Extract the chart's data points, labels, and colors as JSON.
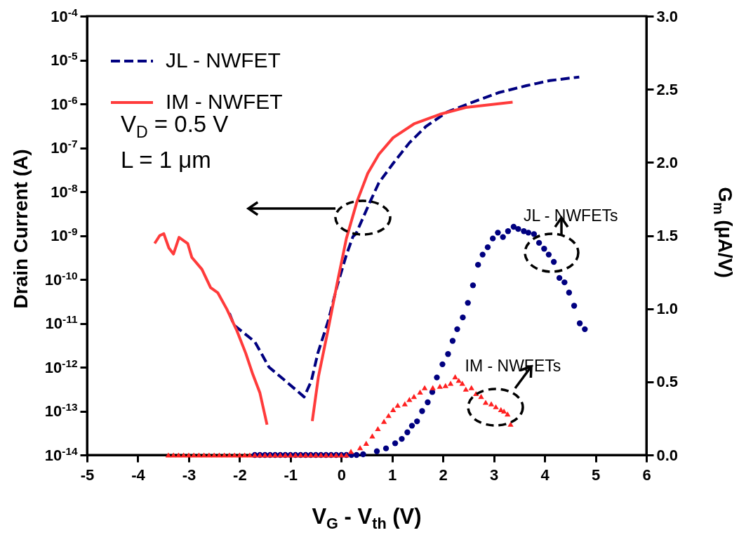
{
  "chart_data": {
    "type": "line",
    "xlabel": "V$_{G}$ - V$_{th}$ (V)",
    "ylabel": "Drain Current (A)",
    "y2label": "G$_{m}$ (μA/V)",
    "xlim": [
      -5,
      6
    ],
    "xticks": [
      -5,
      -4,
      -3,
      -2,
      -1,
      0,
      1,
      2,
      3,
      4,
      5,
      6
    ],
    "ylim": [
      1e-14,
      0.0001
    ],
    "log": "y",
    "yticks": [
      {
        "value": 1e-14,
        "label": "10$^{-14}$"
      },
      {
        "value": 1e-13,
        "label": "10$^{-13}$"
      },
      {
        "value": 1e-12,
        "label": "10$^{-12}$"
      },
      {
        "value": 1e-11,
        "label": "10$^{-11}$"
      },
      {
        "value": 1e-10,
        "label": "10$^{-10}$"
      },
      {
        "value": 1e-09,
        "label": "10$^{-9}$"
      },
      {
        "value": 1e-08,
        "label": "10$^{-8}$"
      },
      {
        "value": 1e-07,
        "label": "10$^{-7}$"
      },
      {
        "value": 1e-06,
        "label": "10$^{-6}$"
      },
      {
        "value": 1e-05,
        "label": "10$^{-5}$"
      },
      {
        "value": 0.0001,
        "label": "10$^{-4}$"
      }
    ],
    "y2lim": [
      0,
      3
    ],
    "y2ticks": [
      {
        "value": 0,
        "label": "0.0"
      },
      {
        "value": 0.5,
        "label": "0.5"
      },
      {
        "value": 1,
        "label": "1.0"
      },
      {
        "value": 1.5,
        "label": "1.5"
      },
      {
        "value": 2,
        "label": "2.0"
      },
      {
        "value": 2.5,
        "label": "2.5"
      },
      {
        "value": 3,
        "label": "3.0"
      }
    ],
    "legend": "top left",
    "grid": false,
    "series": [
      {
        "name": "JL - NWFET",
        "line_style": "dashed",
        "color": "#000080",
        "x": [
          -2.2,
          -2.11,
          -1.7,
          -1.42,
          -1.09,
          -0.73,
          -0.59,
          -0.46,
          -0.26,
          -0.08,
          0.1,
          0.23,
          0.29,
          0.57,
          0.74,
          1.02,
          1.34,
          1.67,
          2.08,
          2.54,
          3.09,
          3.64,
          4.1,
          4.68
        ],
        "values": [
          1.7e-11,
          9.1e-12,
          3.8e-12,
          1e-12,
          4.8e-13,
          2.1e-13,
          4.8e-13,
          2.1e-12,
          1.1e-11,
          7.2e-11,
          3.6e-10,
          9.5e-10,
          1.1e-09,
          6e-09,
          1.6e-08,
          4.4e-08,
          1.3e-07,
          3.1e-07,
          6.5e-07,
          1.05e-06,
          1.8e-06,
          2.6e-06,
          3.4e-06,
          4.1e-06
        ]
      },
      {
        "name": "IM - NWFET",
        "line_style": "solid",
        "color": "#ff3b3b",
        "x": [
          -3.67,
          -3.57,
          -3.49,
          -3.39,
          -3.3,
          -3.19,
          -3.02,
          -2.94,
          -2.74,
          -2.57,
          -2.43,
          -2.25,
          -2.06,
          -1.88,
          -1.74,
          -1.6,
          -1.46,
          -1.0,
          -0.57,
          -0.45,
          -0.26,
          -0.08,
          0.1,
          0.31,
          0.52,
          0.74,
          1.02,
          1.43,
          1.94,
          2.45,
          3.37
        ],
        "values": [
          6.6e-10,
          1e-09,
          1.1e-09,
          5.2e-10,
          3.8e-10,
          9.1e-10,
          6.6e-10,
          3.2e-10,
          1.7e-10,
          6.5e-11,
          5e-11,
          2.1e-11,
          7.1e-12,
          2.1e-12,
          6.9e-13,
          2.6e-13,
          4.9e-14,
          null,
          5.9e-14,
          6e-13,
          7.1e-12,
          8.3e-11,
          8.5e-10,
          6e-09,
          2.6e-08,
          7.1e-08,
          1.7e-07,
          3.5e-07,
          5.8e-07,
          8.3e-07,
          1.1e-06
        ]
      },
      {
        "name": "JL - NWFETs",
        "type": "scatter",
        "axis": "y2",
        "marker": "circle",
        "color": "#000080",
        "x": [
          -1.7,
          -1.6,
          -1.5,
          -1.4,
          -1.3,
          -1.2,
          -1.1,
          -1.0,
          -0.9,
          -0.8,
          -0.7,
          -0.6,
          -0.5,
          -0.4,
          -0.3,
          -0.2,
          -0.1,
          0.0,
          0.1,
          0.2,
          0.3,
          0.43,
          0.7,
          0.88,
          1.06,
          1.19,
          1.3,
          1.39,
          1.49,
          1.59,
          1.7,
          1.79,
          1.88,
          1.99,
          2.1,
          2.19,
          2.28,
          2.39,
          2.49,
          2.59,
          2.69,
          2.78,
          2.88,
          2.98,
          3.08,
          3.18,
          3.28,
          3.39,
          3.48,
          3.59,
          3.68,
          3.79,
          3.89,
          3.99,
          4.08,
          4.18,
          4.29,
          4.39,
          4.48,
          4.58,
          4.69,
          4.79
        ],
        "values": [
          0,
          0,
          0,
          0,
          0,
          0,
          0,
          0,
          0,
          0,
          0,
          0,
          0,
          0,
          0,
          0,
          0,
          0,
          0,
          0,
          0,
          0.005,
          0.025,
          0.045,
          0.08,
          0.11,
          0.155,
          0.2,
          0.23,
          0.3,
          0.36,
          0.43,
          0.53,
          0.62,
          0.69,
          0.78,
          0.86,
          0.94,
          1.04,
          1.16,
          1.3,
          1.37,
          1.42,
          1.48,
          1.52,
          1.49,
          1.53,
          1.56,
          1.545,
          1.53,
          1.52,
          1.51,
          1.45,
          1.41,
          1.37,
          1.32,
          1.21,
          1.18,
          1.11,
          1.02,
          0.9,
          0.86
        ]
      },
      {
        "name": "IM - NWFETs",
        "type": "scatter",
        "axis": "y2",
        "marker": "triangle",
        "color": "#ff2020",
        "x": [
          -3.4,
          -3.3,
          -3.2,
          -3.1,
          -3.0,
          -2.9,
          -2.8,
          -2.7,
          -2.6,
          -2.5,
          -2.4,
          -2.3,
          -2.2,
          -2.1,
          -2.0,
          -1.9,
          -1.8,
          -1.7,
          -1.6,
          -1.5,
          -1.4,
          -1.3,
          -1.2,
          -1.1,
          -1.0,
          -0.9,
          -0.8,
          -0.7,
          -0.6,
          -0.5,
          -0.4,
          -0.3,
          -0.2,
          -0.1,
          0.0,
          0.1,
          0.19,
          0.37,
          0.49,
          0.61,
          0.72,
          0.84,
          0.93,
          1.02,
          1.11,
          1.25,
          1.34,
          1.43,
          1.55,
          1.64,
          1.8,
          1.94,
          2.05,
          2.15,
          2.24,
          2.31,
          2.38,
          2.45,
          2.56,
          2.65,
          2.75,
          2.84,
          2.95,
          3.04,
          3.14,
          3.2,
          3.27,
          3.33
        ],
        "values": [
          0,
          0,
          0,
          0,
          0,
          0,
          0,
          0,
          0,
          0,
          0,
          0,
          0,
          0,
          0,
          0,
          0,
          0,
          0,
          0,
          0,
          0,
          0,
          0,
          0,
          0,
          0,
          0,
          0,
          0,
          0,
          0,
          0,
          0,
          0,
          0,
          0.025,
          0.05,
          0.08,
          0.13,
          0.18,
          0.23,
          0.27,
          0.31,
          0.34,
          0.35,
          0.38,
          0.4,
          0.43,
          0.46,
          0.46,
          0.47,
          0.475,
          0.49,
          0.535,
          0.51,
          0.49,
          0.45,
          0.46,
          0.42,
          0.4,
          0.36,
          0.35,
          0.33,
          0.31,
          0.3,
          0.28,
          0.21
        ]
      }
    ],
    "annotations": [
      "V$_{D}$ = 0.5 V",
      "L = 1 μm"
    ]
  }
}
